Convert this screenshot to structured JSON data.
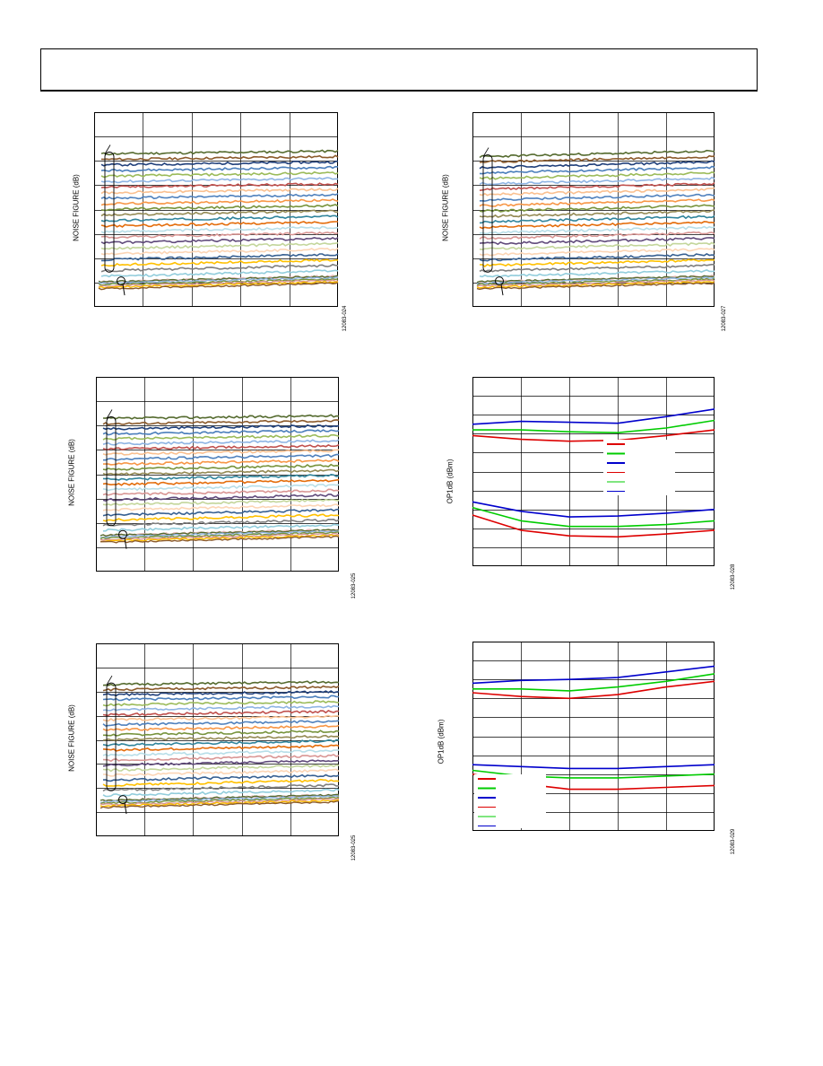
{
  "page": {
    "header": ""
  },
  "panels": [
    {
      "id": "p1",
      "ylabel": "NOISE FIGURE (dB)",
      "figure_id": "12083-024",
      "chart_data": {
        "type": "line",
        "description_visible": "many noise figure traces",
        "grid": true,
        "series_count": 24,
        "ylim": [
          0,
          7
        ],
        "xlim": [
          0,
          5
        ],
        "y_bottom_start": 0.9,
        "y_top_start": 5.5,
        "y_bottom_end": 1.1,
        "y_top_end": 5.6,
        "colors": [
          "#556b2f",
          "#8b5a2b",
          "#1f3f7a",
          "#4a7ebb",
          "#9bbb59",
          "#8eb4e3",
          "#c0504d",
          "#fac090",
          "#4f81bd",
          "#f79646",
          "#77933c",
          "#948a54",
          "#31859c",
          "#e46c0a",
          "#b7dee8",
          "#d99694",
          "#604a7b",
          "#c3d69b",
          "#fcd5b5",
          "#376092",
          "#ffc000",
          "#7f7f7f",
          "#92cddc",
          "#e6b9b8"
        ]
      }
    },
    {
      "id": "p2",
      "ylabel": "NOISE FIGURE (dB)",
      "figure_id": "12083-027",
      "chart_data": {
        "type": "line",
        "grid": true,
        "series_count": 24,
        "ylim": [
          0,
          7
        ],
        "xlim": [
          0,
          5
        ],
        "y_bottom_start": 0.9,
        "y_top_start": 5.4,
        "y_bottom_end": 1.1,
        "y_top_end": 5.6,
        "colors": [
          "#556b2f",
          "#8b5a2b",
          "#1f3f7a",
          "#4a7ebb",
          "#9bbb59",
          "#8eb4e3",
          "#c0504d",
          "#fac090",
          "#4f81bd",
          "#f79646",
          "#77933c",
          "#948a54",
          "#31859c",
          "#e46c0a",
          "#b7dee8",
          "#d99694",
          "#604a7b",
          "#c3d69b",
          "#fcd5b5",
          "#376092",
          "#ffc000",
          "#7f7f7f",
          "#92cddc",
          "#e6b9b8"
        ]
      }
    },
    {
      "id": "p3",
      "ylabel": "NOISE FIGURE (dB)",
      "figure_id": "12083-025",
      "chart_data": {
        "type": "line",
        "grid": true,
        "series_count": 24,
        "ylim": [
          0,
          7
        ],
        "xlim": [
          0,
          5
        ],
        "y_bottom_start": 1.3,
        "y_top_start": 5.5,
        "y_bottom_end": 1.5,
        "y_top_end": 5.6,
        "colors": [
          "#556b2f",
          "#8b5a2b",
          "#1f3f7a",
          "#4a7ebb",
          "#9bbb59",
          "#8eb4e3",
          "#c0504d",
          "#fac090",
          "#4f81bd",
          "#f79646",
          "#77933c",
          "#948a54",
          "#31859c",
          "#e46c0a",
          "#b7dee8",
          "#d99694",
          "#604a7b",
          "#c3d69b",
          "#fcd5b5",
          "#376092",
          "#ffc000",
          "#7f7f7f",
          "#92cddc",
          "#e6b9b8"
        ]
      }
    },
    {
      "id": "p4",
      "ylabel": "OP1dB (dBm)",
      "figure_id": "12083-028",
      "chart_data": {
        "type": "line",
        "grid": true,
        "xlim": [
          0,
          5
        ],
        "ylim": [
          0,
          10
        ],
        "series": [
          {
            "color": "#0000cc",
            "x": [
              0,
              1,
              2,
              3,
              4,
              5
            ],
            "values": [
              7.5,
              7.65,
              7.6,
              7.55,
              7.9,
              8.3
            ]
          },
          {
            "color": "#00cc00",
            "x": [
              0,
              1,
              2,
              3,
              4,
              5
            ],
            "values": [
              7.2,
              7.2,
              7.1,
              7.05,
              7.3,
              7.7
            ]
          },
          {
            "color": "#dd0000",
            "x": [
              0,
              1,
              2,
              3,
              4,
              5
            ],
            "values": [
              6.9,
              6.7,
              6.6,
              6.65,
              6.9,
              7.2
            ]
          },
          {
            "color": "#0000cc",
            "x": [
              0,
              1,
              2,
              3,
              4,
              5
            ],
            "values": [
              3.4,
              2.9,
              2.6,
              2.65,
              2.8,
              3.0
            ]
          },
          {
            "color": "#00cc00",
            "x": [
              0,
              1,
              2,
              3,
              4,
              5
            ],
            "values": [
              3.1,
              2.4,
              2.1,
              2.1,
              2.2,
              2.4
            ]
          },
          {
            "color": "#dd0000",
            "x": [
              0,
              1,
              2,
              3,
              4,
              5
            ],
            "values": [
              2.7,
              1.9,
              1.6,
              1.55,
              1.7,
              1.9
            ]
          }
        ],
        "legend_swatches": [
          "#dd0000",
          "#00cc00",
          "#0000cc",
          "#dd0000",
          "#00cc00",
          "#0000cc"
        ]
      }
    },
    {
      "id": "p5",
      "ylabel": "OP1dB (dBm)",
      "figure_id": "12083-029",
      "chart_data": {
        "type": "line",
        "grid": true,
        "xlim": [
          0,
          5
        ],
        "ylim": [
          0,
          10
        ],
        "series": [
          {
            "color": "#0000cc",
            "x": [
              0,
              1,
              2,
              3,
              4,
              5
            ],
            "values": [
              7.8,
              7.95,
              8.0,
              8.1,
              8.4,
              8.7
            ]
          },
          {
            "color": "#00cc00",
            "x": [
              0,
              1,
              2,
              3,
              4,
              5
            ],
            "values": [
              7.5,
              7.5,
              7.4,
              7.6,
              7.9,
              8.3
            ]
          },
          {
            "color": "#dd0000",
            "x": [
              0,
              1,
              2,
              3,
              4,
              5
            ],
            "values": [
              7.3,
              7.1,
              7.0,
              7.2,
              7.6,
              7.9
            ]
          },
          {
            "color": "#0000cc",
            "x": [
              0,
              1,
              2,
              3,
              4,
              5
            ],
            "values": [
              3.5,
              3.4,
              3.3,
              3.3,
              3.4,
              3.5
            ]
          },
          {
            "color": "#00cc00",
            "x": [
              0,
              1,
              2,
              3,
              4,
              5
            ],
            "values": [
              3.2,
              2.9,
              2.8,
              2.8,
              2.9,
              3.0
            ]
          },
          {
            "color": "#dd0000",
            "x": [
              0,
              1,
              2,
              3,
              4,
              5
            ],
            "values": [
              3.0,
              2.5,
              2.2,
              2.2,
              2.3,
              2.4
            ]
          }
        ],
        "legend_swatches": [
          "#dd0000",
          "#00cc00",
          "#0000cc",
          "#dd0000",
          "#00cc00",
          "#0000cc"
        ]
      }
    }
  ]
}
